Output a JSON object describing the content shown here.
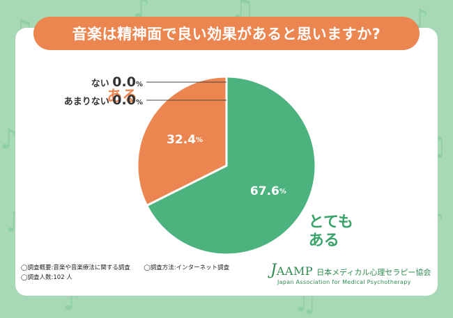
{
  "title": "音楽は精神面で良い効果があると思いますか?",
  "colors": {
    "background": "#a8d9b6",
    "title_bar": "#ec8650",
    "slice_green": "#4db37e",
    "slice_orange": "#ec8650",
    "label_green": "#3aa36a",
    "label_orange": "#ec8650"
  },
  "chart_data": {
    "type": "pie",
    "title": "音楽は精神面で良い効果があると思いますか?",
    "slices": [
      {
        "label": "とてもある",
        "value": 67.6,
        "display": "67.6",
        "color": "#4db37e"
      },
      {
        "label": "ある",
        "value": 32.4,
        "display": "32.4",
        "color": "#ec8650"
      },
      {
        "label": "あまりない",
        "value": 0.0,
        "display": "0.0",
        "color": "#888888"
      },
      {
        "label": "ない",
        "value": 0.0,
        "display": "0.0",
        "color": "#888888"
      }
    ],
    "unit": "%"
  },
  "footnotes": {
    "survey_summary": "◯調査概要:音楽や音楽療法に関する調査",
    "survey_method": "◯調査方法:インターネット調査",
    "respondents": "◯調査人数:102 人"
  },
  "logo": {
    "mark_j": "J",
    "mark_rest": "AAMP",
    "name_jp": "日本メディカル心理セラピー協会",
    "name_en": "Japan Association for Medical Psychotherapy"
  }
}
